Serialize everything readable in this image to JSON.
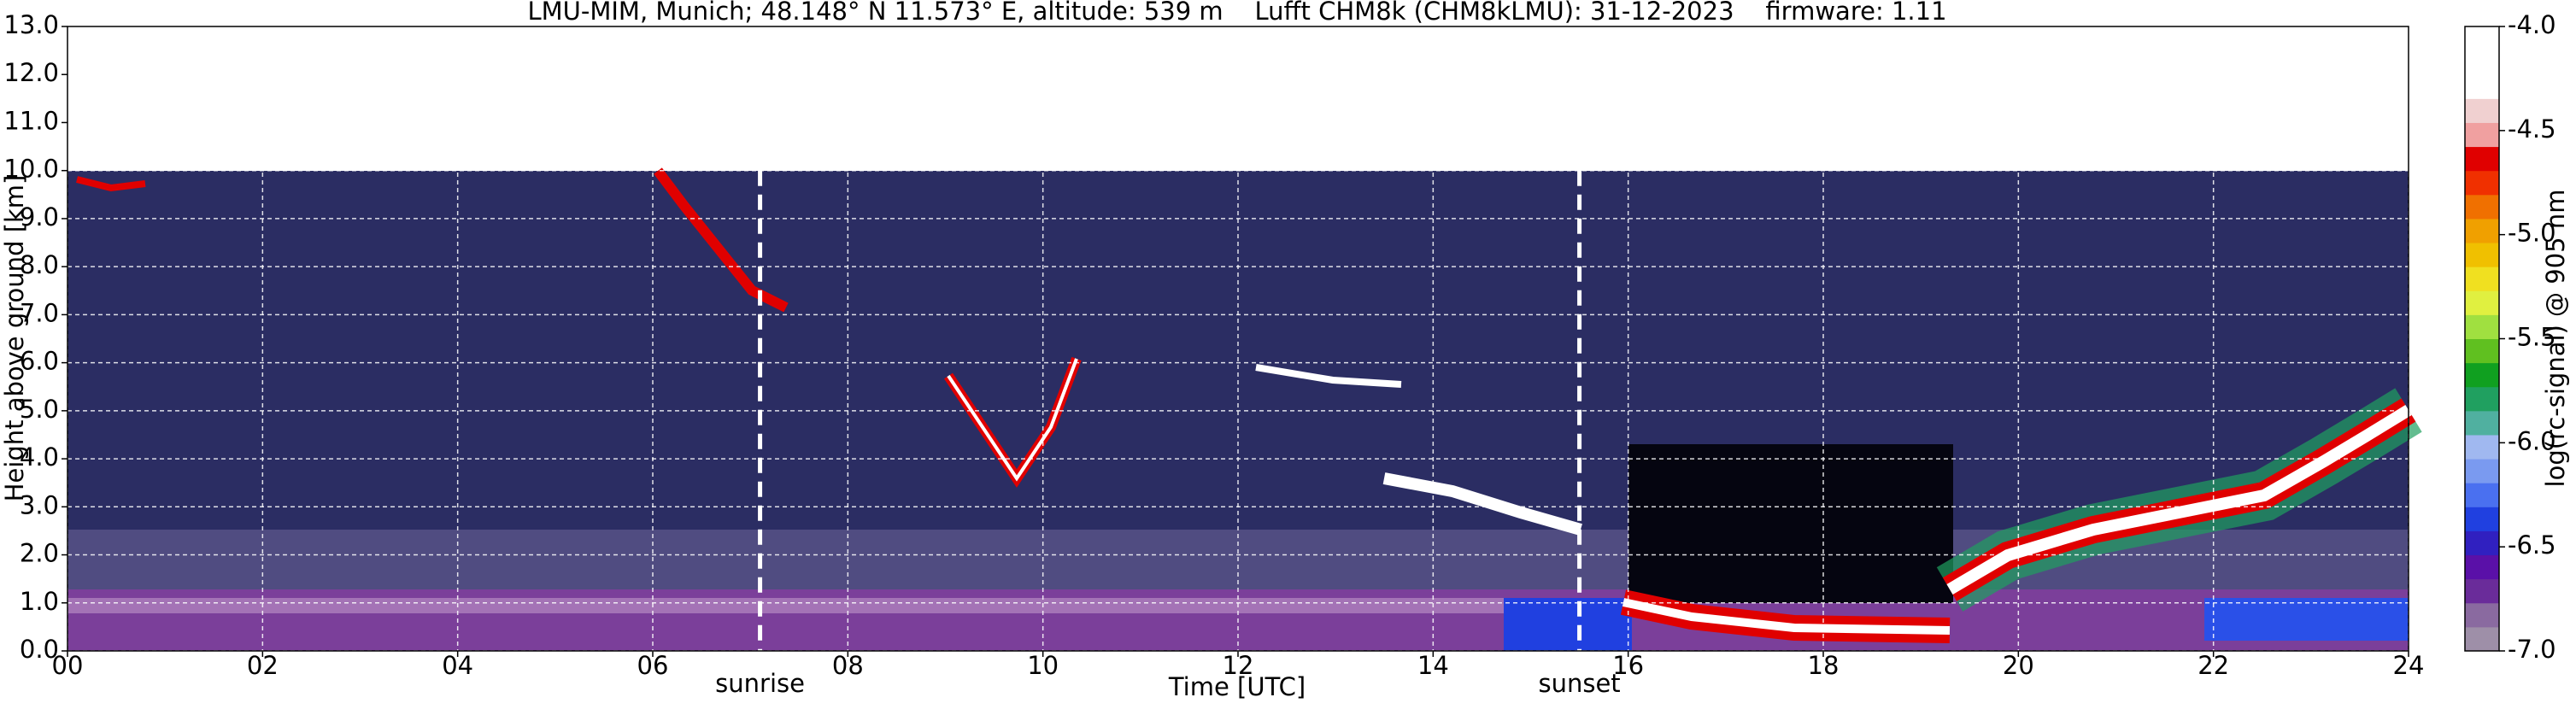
{
  "chart_data": {
    "type": "heatmap",
    "title": "LMU-MIM, Munich; 48.148° N 11.573° E, altitude: 539 m    Lufft CHM8k (CHM8kLMU): 31-12-2023    firmware: 1.11",
    "xlabel": "Time [UTC]",
    "ylabel": "Height above ground [km]",
    "xlim": [
      0,
      24
    ],
    "xticks": [
      {
        "value": 0,
        "label": "00"
      },
      {
        "value": 2,
        "label": "02"
      },
      {
        "value": 4,
        "label": "04"
      },
      {
        "value": 6,
        "label": "06"
      },
      {
        "value": 8,
        "label": "08"
      },
      {
        "value": 10,
        "label": "10"
      },
      {
        "value": 12,
        "label": "12"
      },
      {
        "value": 14,
        "label": "14"
      },
      {
        "value": 16,
        "label": "16"
      },
      {
        "value": 18,
        "label": "18"
      },
      {
        "value": 20,
        "label": "20"
      },
      {
        "value": 22,
        "label": "22"
      },
      {
        "value": 24,
        "label": "24"
      }
    ],
    "ylim": [
      0,
      13
    ],
    "yticks": [
      {
        "value": 0,
        "label": "0.0"
      },
      {
        "value": 1,
        "label": "1.0"
      },
      {
        "value": 2,
        "label": "2.0"
      },
      {
        "value": 3,
        "label": "3.0"
      },
      {
        "value": 4,
        "label": "4.0"
      },
      {
        "value": 5,
        "label": "5.0"
      },
      {
        "value": 6,
        "label": "6.0"
      },
      {
        "value": 7,
        "label": "7.0"
      },
      {
        "value": 8,
        "label": "8.0"
      },
      {
        "value": 9,
        "label": "9.0"
      },
      {
        "value": 10,
        "label": "10.0"
      },
      {
        "value": 11,
        "label": "11.0"
      },
      {
        "value": 12,
        "label": "12.0"
      },
      {
        "value": 13,
        "label": "13.0"
      }
    ],
    "grid": true,
    "annotations": [
      {
        "text": "sunrise",
        "x": 7.1
      },
      {
        "text": "sunset",
        "x": 15.5
      }
    ],
    "colorbar": {
      "label": "log(rc-signal) @ 905 nm",
      "lim": [
        -7,
        -4
      ],
      "ticks": [
        {
          "value": -4,
          "label": "-4.0"
        },
        {
          "value": -4.5,
          "label": "-4.5"
        },
        {
          "value": -5,
          "label": "-5.0"
        },
        {
          "value": -5.5,
          "label": "-5.5"
        },
        {
          "value": -6,
          "label": "-6.0"
        },
        {
          "value": -6.5,
          "label": "-6.5"
        },
        {
          "value": -7,
          "label": "-7.0"
        }
      ],
      "colors": [
        "#9e8fa8",
        "#8a6aa0",
        "#6a2c9a",
        "#5a10a8",
        "#3020c0",
        "#2040e0",
        "#4a70f0",
        "#7a9af0",
        "#a0b8f0",
        "#50b0a0",
        "#20a060",
        "#10a020",
        "#60c020",
        "#a0e040",
        "#e0f040",
        "#f0e020",
        "#f0c000",
        "#f0a000",
        "#f07000",
        "#f03000",
        "#e00000",
        "#f0a0a0",
        "#f0d0d0",
        "#ffffff",
        "#ffffff",
        "#ffffff"
      ]
    }
  }
}
